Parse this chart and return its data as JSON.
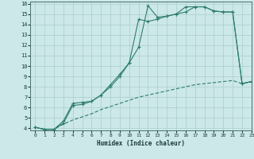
{
  "background_color": "#cce8e8",
  "grid_color": "#aacece",
  "line_color": "#2e7d6e",
  "xlabel": "Humidex (Indice chaleur)",
  "xlim": [
    -0.5,
    23
  ],
  "ylim": [
    3.8,
    16.2
  ],
  "yticks": [
    4,
    5,
    6,
    7,
    8,
    9,
    10,
    11,
    12,
    13,
    14,
    15,
    16
  ],
  "xticks": [
    0,
    1,
    2,
    3,
    4,
    5,
    6,
    7,
    8,
    9,
    10,
    11,
    12,
    13,
    14,
    15,
    16,
    17,
    18,
    19,
    20,
    21,
    22,
    23
  ],
  "line1_x": [
    0,
    1,
    2,
    3,
    4,
    5,
    6,
    7,
    8,
    9,
    10,
    11,
    12,
    13,
    14,
    15,
    16,
    17,
    18,
    19,
    20,
    21,
    22,
    23
  ],
  "line1_y": [
    4.1,
    3.9,
    3.9,
    4.5,
    6.2,
    6.3,
    6.6,
    7.2,
    8.0,
    9.0,
    10.3,
    11.8,
    15.8,
    14.7,
    14.8,
    15.0,
    15.2,
    15.7,
    15.7,
    15.3,
    15.2,
    15.2,
    8.3,
    8.5
  ],
  "line2_x": [
    0,
    1,
    2,
    3,
    4,
    5,
    6,
    7,
    8,
    9,
    10,
    11,
    12,
    13,
    14,
    15,
    16,
    17,
    18,
    19,
    20,
    21,
    22,
    23
  ],
  "line2_y": [
    4.1,
    3.9,
    3.9,
    4.7,
    6.4,
    6.5,
    6.6,
    7.2,
    8.2,
    9.2,
    10.3,
    14.5,
    14.3,
    14.5,
    14.8,
    15.0,
    15.7,
    15.7,
    15.7,
    15.3,
    15.2,
    15.2,
    8.3,
    8.5
  ],
  "line3_x": [
    0,
    1,
    2,
    3,
    4,
    5,
    6,
    7,
    8,
    9,
    10,
    11,
    12,
    13,
    14,
    15,
    16,
    17,
    18,
    19,
    20,
    21,
    22,
    23
  ],
  "line3_y": [
    4.1,
    3.9,
    3.9,
    4.4,
    4.8,
    5.1,
    5.4,
    5.8,
    6.1,
    6.4,
    6.7,
    7.0,
    7.2,
    7.4,
    7.6,
    7.8,
    8.0,
    8.2,
    8.3,
    8.4,
    8.5,
    8.6,
    8.3,
    8.5
  ]
}
